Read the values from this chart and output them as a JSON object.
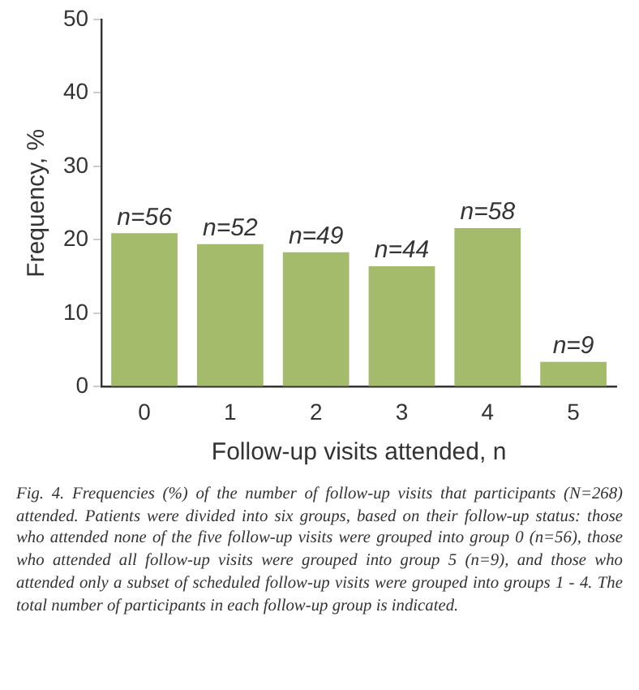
{
  "chart_data": {
    "type": "bar",
    "xlabel": "Follow-up visits attended, n",
    "ylabel": "Frequency, %",
    "categories": [
      "0",
      "1",
      "2",
      "3",
      "4",
      "5"
    ],
    "values": [
      20.9,
      19.4,
      18.3,
      16.4,
      21.6,
      3.4
    ],
    "color": "#a4bb6c",
    "ylim": [
      0,
      50
    ],
    "yticks": [
      0,
      10,
      20,
      30,
      40,
      50
    ],
    "grid": false,
    "legend": false,
    "annotations": [
      {
        "text": "n=56",
        "x": "0",
        "y": 20.9
      },
      {
        "text": "n=52",
        "x": "1",
        "y": 19.4
      },
      {
        "text": "n=49",
        "x": "2",
        "y": 18.3
      },
      {
        "text": "n=44",
        "x": "3",
        "y": 16.4
      },
      {
        "text": "n=58",
        "x": "4",
        "y": 21.6
      },
      {
        "text": "n=9",
        "x": "5",
        "y": 3.4
      },
      "Fig. 4. Frequencies (%) of the number of follow-up visits that participants (N=268) attended. Patients were divided into six groups, based on their follow-up status: those who attended none of the five follow-up visits were grouped into group 0 (n=56), those who attended all follow-up visits were grouped into group 5 (n=9), and those who attended only a subset of scheduled follow-up visits were grouped into groups 1 - 4. The total number of participants in each follow-up group is indicated."
    ]
  }
}
